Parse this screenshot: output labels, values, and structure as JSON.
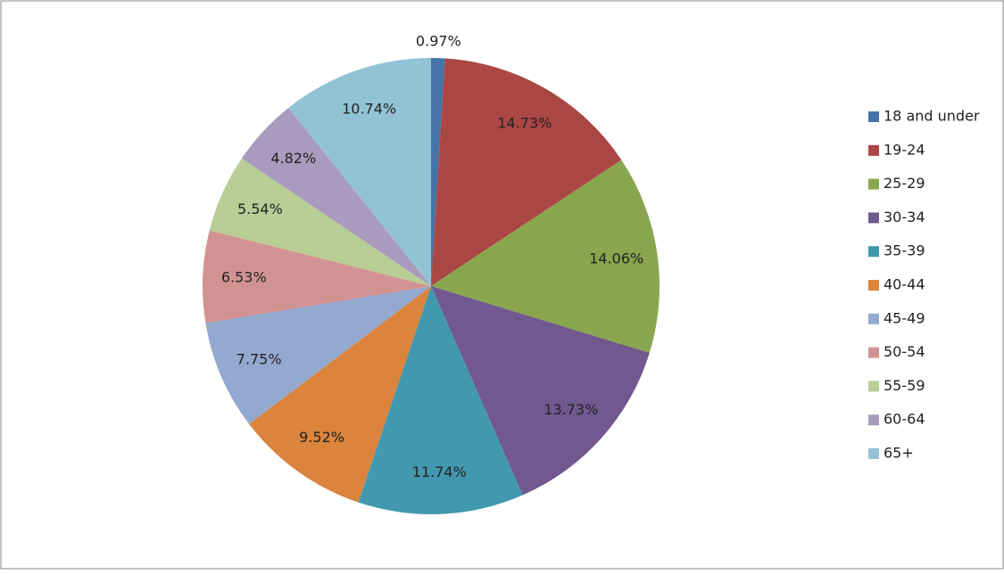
{
  "chart_data": {
    "type": "pie",
    "categories": [
      "18 and under",
      "19-24",
      "25-29",
      "30-34",
      "35-39",
      "40-44",
      "45-49",
      "50-54",
      "55-59",
      "60-64",
      "65+"
    ],
    "values": [
      0.97,
      14.73,
      14.06,
      13.73,
      11.74,
      9.52,
      7.75,
      6.53,
      5.54,
      4.82,
      10.74
    ],
    "value_labels": [
      "0.97%",
      "14.73%",
      "14.06%",
      "13.73%",
      "11.74%",
      "9.52%",
      "7.75%",
      "6.53%",
      "5.54%",
      "4.82%",
      "10.74%"
    ],
    "colors": [
      "#4572a7",
      "#aa4643",
      "#89a54e",
      "#71588f",
      "#4198af",
      "#db843d",
      "#93a9cf",
      "#d19392",
      "#b9cd96",
      "#a99bbd",
      "#92c3d5"
    ],
    "legend": "right"
  }
}
